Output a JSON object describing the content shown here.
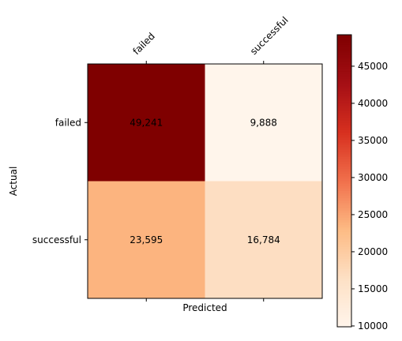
{
  "chart_data": {
    "type": "heatmap",
    "title": "",
    "xlabel": "Predicted",
    "ylabel": "Actual",
    "x_categories": [
      "failed",
      "successful"
    ],
    "y_categories": [
      "failed",
      "successful"
    ],
    "values": [
      [
        49241,
        9888
      ],
      [
        23595,
        16784
      ]
    ],
    "value_labels": [
      [
        "49,241",
        "9,888"
      ],
      [
        "23,595",
        "16,784"
      ]
    ],
    "colormap": "OrRd-dark (white to dark red)",
    "color_stops": [
      "#fff5eb",
      "#fde0c5",
      "#fdbb84",
      "#f1704c",
      "#d7301f",
      "#a50f15",
      "#7f0000"
    ],
    "colorbar": {
      "range": [
        9888,
        49241
      ],
      "ticks": [
        10000,
        15000,
        20000,
        25000,
        30000,
        35000,
        40000,
        45000
      ],
      "tick_labels": [
        "10000",
        "15000",
        "20000",
        "25000",
        "30000",
        "35000",
        "40000",
        "45000"
      ]
    },
    "x_tick_position": "top",
    "x_tick_rotation": "45 degrees",
    "grid": false
  }
}
